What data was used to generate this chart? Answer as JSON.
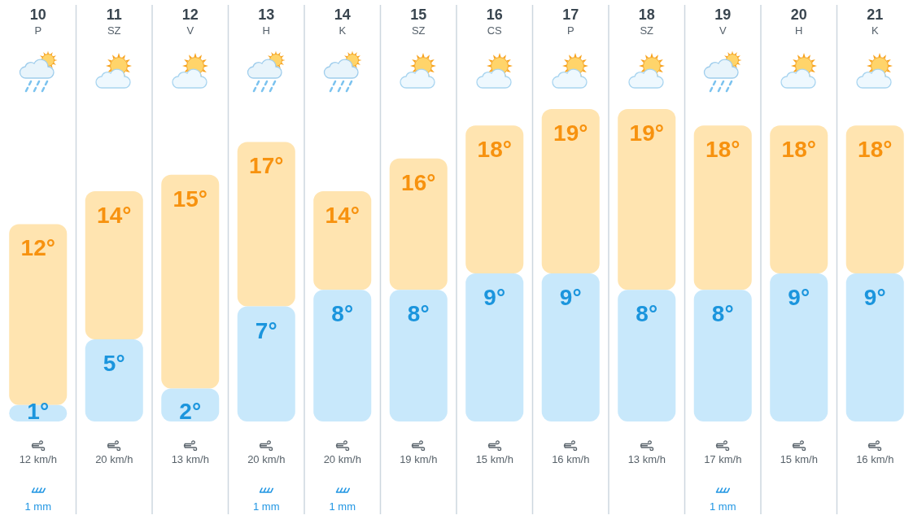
{
  "chart_data": {
    "type": "bar",
    "stacked": true,
    "categories": [
      "10 P",
      "11 SZ",
      "12 V",
      "13 H",
      "14 K",
      "15 SZ",
      "16 CS",
      "17 P",
      "18 SZ",
      "19 V",
      "20 H",
      "21 K"
    ],
    "series": [
      {
        "color": "#c8e8fb",
        "values": [
          1,
          5,
          2,
          7,
          8,
          8,
          9,
          9,
          8,
          8,
          9,
          9
        ],
        "value_labels": [
          "1°",
          "5°",
          "2°",
          "7°",
          "8°",
          "8°",
          "9°",
          "9°",
          "8°",
          "8°",
          "9°",
          "9°"
        ]
      },
      {
        "color": "#ffe4b0",
        "values": [
          11,
          9,
          13,
          10,
          6,
          8,
          9,
          10,
          11,
          10,
          9,
          9
        ]
      }
    ],
    "totals": [
      "12°",
      "14°",
      "15°",
      "17°",
      "14°",
      "16°",
      "18°",
      "19°",
      "19°",
      "18°",
      "18°",
      "18°"
    ],
    "annotations": [
      "12 km/h\n1 mm",
      "20 km/h",
      "13 km/h",
      "20 km/h\n1 mm",
      "20 km/h\n1 mm",
      "19 km/h",
      "15 km/h",
      "16 km/h",
      "13 km/h",
      "17 km/h\n1 mm",
      "15 km/h",
      "16 km/h"
    ],
    "grid": "x",
    "tick_labels": "x"
  }
}
